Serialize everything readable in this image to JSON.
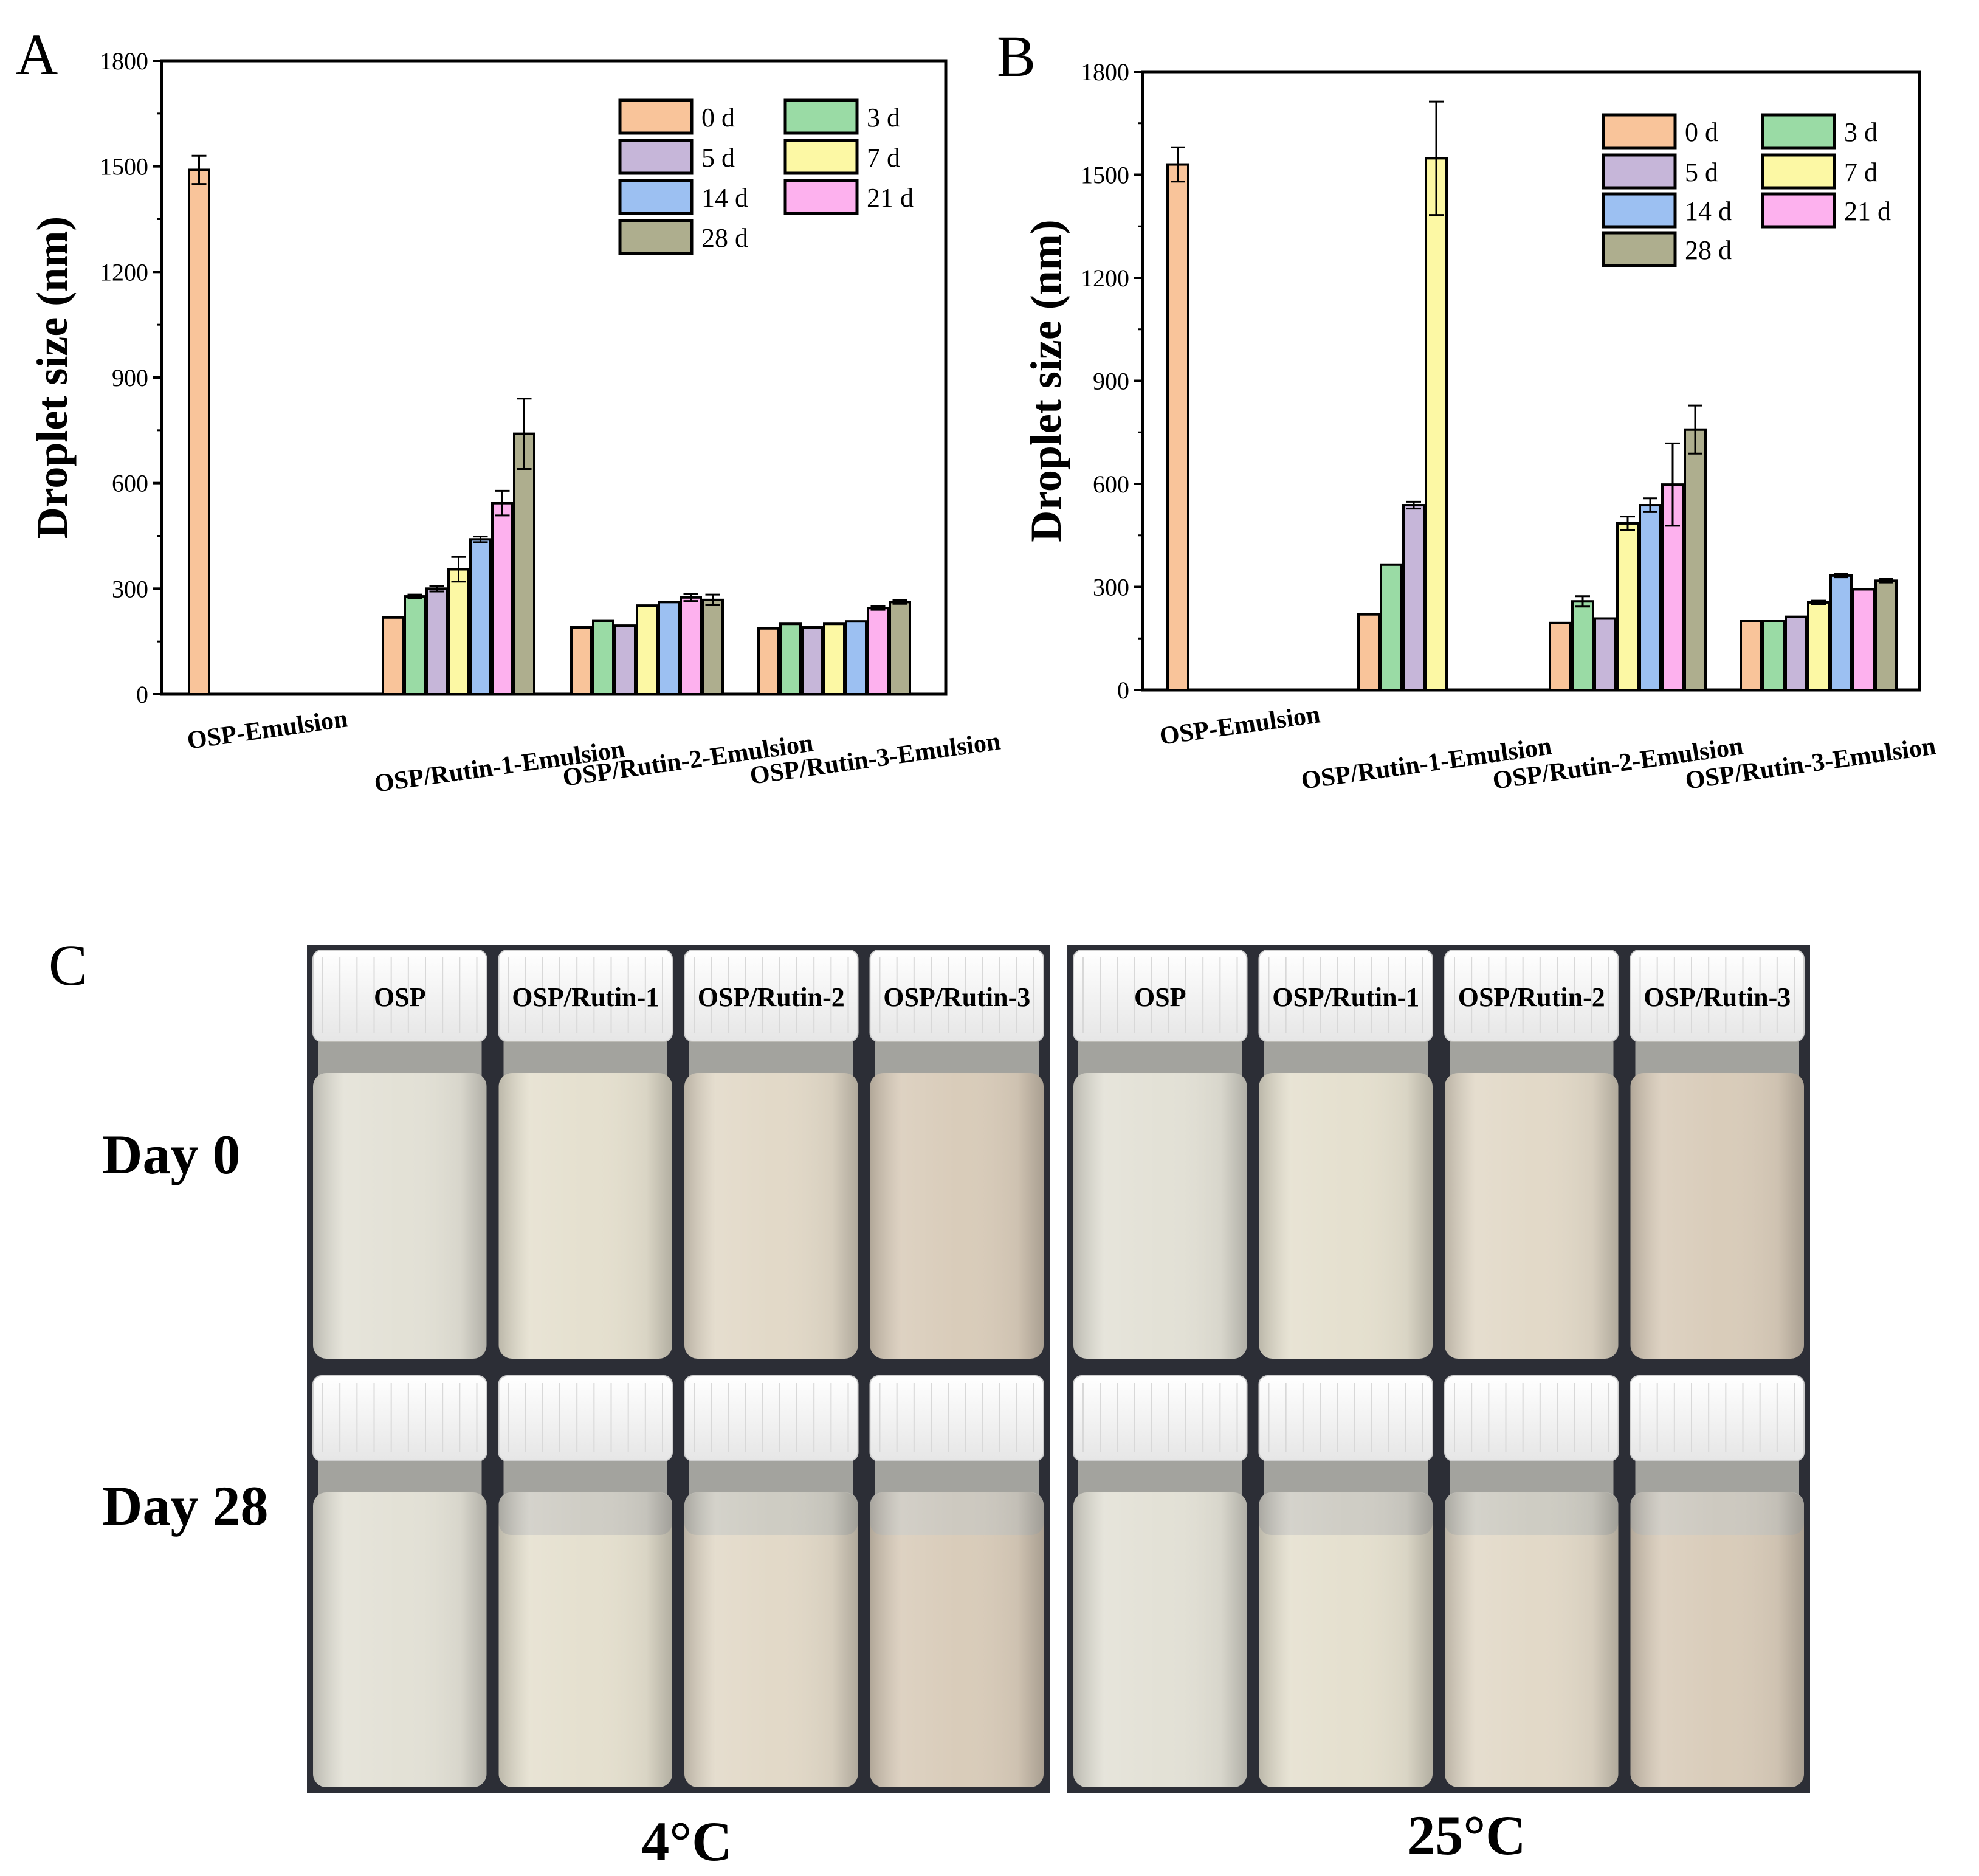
{
  "chart_data": [
    {
      "panel": "A",
      "type": "bar",
      "categories": [
        "OSP-Emulsion",
        "OSP/Rutin-1-Emulsion",
        "OSP/Rutin-2-Emulsion",
        "OSP/Rutin-3-Emulsion"
      ],
      "ylabel": "Droplet size (nm)",
      "ylim": [
        0,
        1800
      ],
      "yticks": [
        0,
        300,
        600,
        900,
        1200,
        1500,
        1800
      ],
      "legend_position": "top-right",
      "series": [
        {
          "name": "0 d",
          "color": "#F9C49A",
          "values": [
            1490,
            218,
            190,
            187
          ],
          "errors": [
            40,
            0,
            0,
            0
          ]
        },
        {
          "name": "3 d",
          "color": "#9ADBA5",
          "values": [
            null,
            278,
            208,
            200
          ],
          "errors": [
            0,
            5,
            0,
            0
          ]
        },
        {
          "name": "5 d",
          "color": "#C6B6D9",
          "values": [
            null,
            300,
            195,
            190
          ],
          "errors": [
            0,
            8,
            0,
            0
          ]
        },
        {
          "name": "7 d",
          "color": "#FCF8A4",
          "values": [
            null,
            355,
            252,
            200
          ],
          "errors": [
            0,
            35,
            0,
            0
          ]
        },
        {
          "name": "14 d",
          "color": "#9CC0F2",
          "values": [
            null,
            440,
            262,
            207
          ],
          "errors": [
            0,
            8,
            0,
            0
          ]
        },
        {
          "name": "21 d",
          "color": "#FDB1EE",
          "values": [
            null,
            543,
            275,
            245
          ],
          "errors": [
            0,
            35,
            10,
            5
          ]
        },
        {
          "name": "28 d",
          "color": "#AEAE8E",
          "values": [
            null,
            740,
            268,
            262
          ],
          "errors": [
            0,
            100,
            15,
            5
          ]
        }
      ]
    },
    {
      "panel": "B",
      "type": "bar",
      "categories": [
        "OSP-Emulsion",
        "OSP/Rutin-1-Emulsion",
        "OSP/Rutin-2-Emulsion",
        "OSP/Rutin-3-Emulsion"
      ],
      "ylabel": "Droplet size (nm)",
      "ylim": [
        0,
        1800
      ],
      "yticks": [
        0,
        300,
        600,
        900,
        1200,
        1500,
        1800
      ],
      "legend_position": "top-right",
      "series": [
        {
          "name": "0 d",
          "color": "#F9C49A",
          "values": [
            1530,
            220,
            195,
            200
          ],
          "errors": [
            50,
            0,
            0,
            0
          ]
        },
        {
          "name": "3 d",
          "color": "#9ADBA5",
          "values": [
            null,
            365,
            258,
            200
          ],
          "errors": [
            0,
            0,
            15,
            0
          ]
        },
        {
          "name": "5 d",
          "color": "#C6B6D9",
          "values": [
            null,
            538,
            208,
            213
          ],
          "errors": [
            0,
            10,
            0,
            0
          ]
        },
        {
          "name": "7 d",
          "color": "#FCF8A4",
          "values": [
            null,
            1548,
            485,
            255
          ],
          "errors": [
            0,
            165,
            20,
            5
          ]
        },
        {
          "name": "14 d",
          "color": "#9CC0F2",
          "values": [
            null,
            null,
            538,
            333
          ],
          "errors": [
            0,
            0,
            20,
            5
          ]
        },
        {
          "name": "21 d",
          "color": "#FDB1EE",
          "values": [
            null,
            null,
            598,
            293
          ],
          "errors": [
            0,
            0,
            120,
            0
          ]
        },
        {
          "name": "28 d",
          "color": "#AEAE8E",
          "values": [
            null,
            null,
            758,
            318
          ],
          "errors": [
            0,
            0,
            70,
            5
          ]
        }
      ]
    }
  ],
  "panel_c": {
    "label": "C",
    "row_labels": [
      "Day 0",
      "Day 28"
    ],
    "temperatures": [
      "4°C",
      "25°C"
    ],
    "vial_labels": [
      "OSP",
      "OSP/Rutin-1",
      "OSP/Rutin-2",
      "OSP/Rutin-3"
    ],
    "liquid_colors": [
      "#E3E1D6",
      "#E5E0CF",
      "#E2D9C8",
      "#D9CCBA"
    ]
  }
}
